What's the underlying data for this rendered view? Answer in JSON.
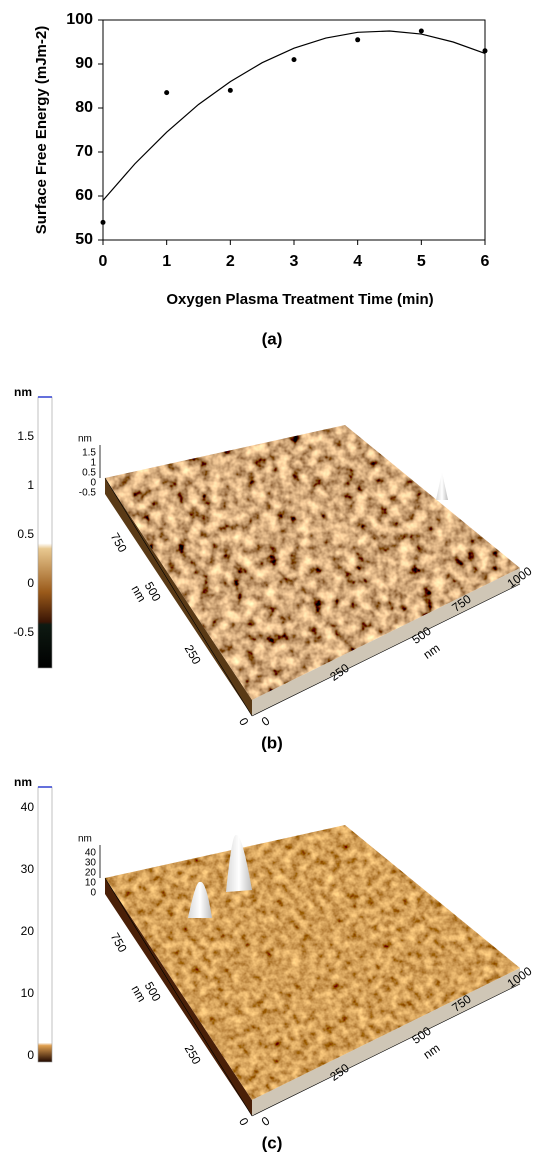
{
  "chart_data": {
    "type": "scatter",
    "x": [
      0,
      1,
      2,
      3,
      4,
      5,
      6
    ],
    "values": [
      54,
      83.5,
      84,
      91,
      95.5,
      97.5,
      93
    ],
    "color": "#000000",
    "fit": {
      "x": [
        0,
        0.5,
        1,
        1.5,
        2,
        2.5,
        3,
        3.5,
        4,
        4.5,
        5,
        5.5,
        6
      ],
      "values": [
        59,
        67.3,
        74.5,
        80.8,
        86,
        90.3,
        93.6,
        95.9,
        97.2,
        97.5,
        96.8,
        95,
        92.4
      ]
    },
    "x_label": "Oxygen Plasma Treatment Time (min)",
    "y_label": "Surface Free Energy (mJm-2)",
    "caption": "(a)",
    "xlim": [
      0,
      6
    ],
    "xticks": [
      0,
      1,
      2,
      3,
      4,
      5,
      6
    ],
    "ylim": [
      50,
      100
    ],
    "yticks": [
      50,
      60,
      70,
      80,
      90,
      100
    ]
  },
  "afm_panels": [
    {
      "caption": "(b)",
      "colorbar_unit": "nm",
      "colorbar_ticks": [
        1.5,
        1,
        0.5,
        0,
        -0.5
      ],
      "z_unit": "nm",
      "z_ticks": [
        1.5,
        1,
        0.5,
        0,
        -0.5
      ],
      "y_unit": "nm",
      "y_ticks": [
        0,
        250,
        500,
        750
      ],
      "x_unit": "nm",
      "x_ticks": [
        0,
        250,
        500,
        750,
        1000
      ]
    },
    {
      "caption": "(c)",
      "colorbar_unit": "nm",
      "colorbar_ticks": [
        40,
        30,
        20,
        10,
        0
      ],
      "z_unit": "nm",
      "z_ticks": [
        40,
        30,
        20,
        10,
        0
      ],
      "y_unit": "nm",
      "y_ticks": [
        0,
        250,
        500,
        750
      ],
      "x_unit": "nm",
      "x_ticks": [
        0,
        250,
        500,
        750,
        1000
      ]
    }
  ]
}
